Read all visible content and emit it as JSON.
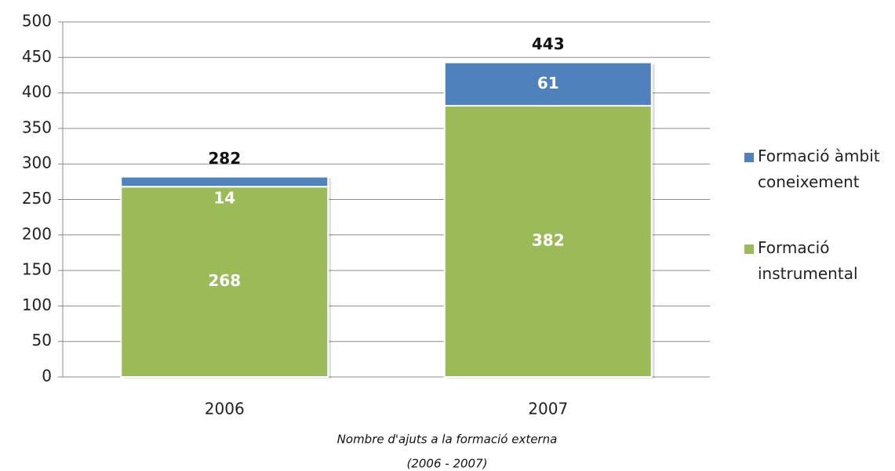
{
  "chart_data": {
    "type": "stacked_bar",
    "title": "Nombre d'ajuts a la formació externa",
    "subtitle": "(2006 - 2007)",
    "categories": [
      "2006",
      "2007"
    ],
    "series": [
      {
        "name": "Formació instrumental",
        "color": "#9bbb59",
        "values": [
          268,
          382
        ]
      },
      {
        "name": "Formació àmbit coneixement",
        "color": "#4f81bd",
        "values": [
          14,
          61
        ]
      }
    ],
    "totals": [
      282,
      443
    ],
    "ylim": [
      0,
      500
    ],
    "yticks": [
      0,
      50,
      100,
      150,
      200,
      250,
      300,
      350,
      400,
      450,
      500
    ],
    "grid": true,
    "legend": "right"
  }
}
